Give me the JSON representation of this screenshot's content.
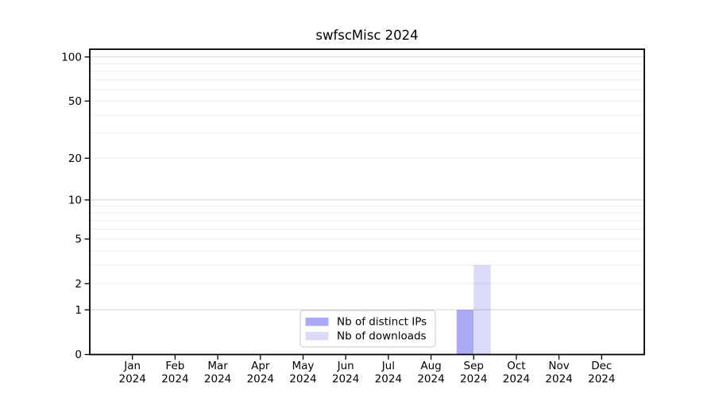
{
  "chart_data": {
    "type": "bar",
    "title": "swfscMisc 2024",
    "categories": [
      "Jan",
      "Feb",
      "Mar",
      "Apr",
      "May",
      "Jun",
      "Jul",
      "Aug",
      "Sep",
      "Oct",
      "Nov",
      "Dec"
    ],
    "category_year": "2024",
    "series": [
      {
        "name": "Nb of distinct IPs",
        "color": "#aaaaf5",
        "values": [
          0,
          0,
          0,
          0,
          0,
          0,
          0,
          0,
          1,
          0,
          0,
          0
        ]
      },
      {
        "name": "Nb of downloads",
        "color": "#dbdbf9",
        "values": [
          0,
          0,
          0,
          0,
          0,
          0,
          0,
          0,
          3,
          0,
          0,
          0
        ]
      }
    ],
    "y_axis": {
      "scale": "log1p",
      "ticks": [
        0,
        1,
        2,
        5,
        10,
        20,
        50,
        100
      ],
      "major_gridlines": [
        1,
        10,
        100
      ],
      "minor_gridlines": [
        2,
        3,
        4,
        5,
        6,
        7,
        8,
        9,
        20,
        30,
        40,
        50,
        60,
        70,
        80,
        90
      ],
      "ylim": [
        0,
        115
      ]
    },
    "xlabel": "",
    "ylabel": "",
    "grid": true,
    "legend_position": "bottom-center"
  },
  "colors": {
    "bar_distinct_ips": "#aaaaf5",
    "bar_downloads": "#dbdbf9",
    "axis": "#000000",
    "legend_border": "#c9c9c9",
    "background": "#ffffff"
  }
}
